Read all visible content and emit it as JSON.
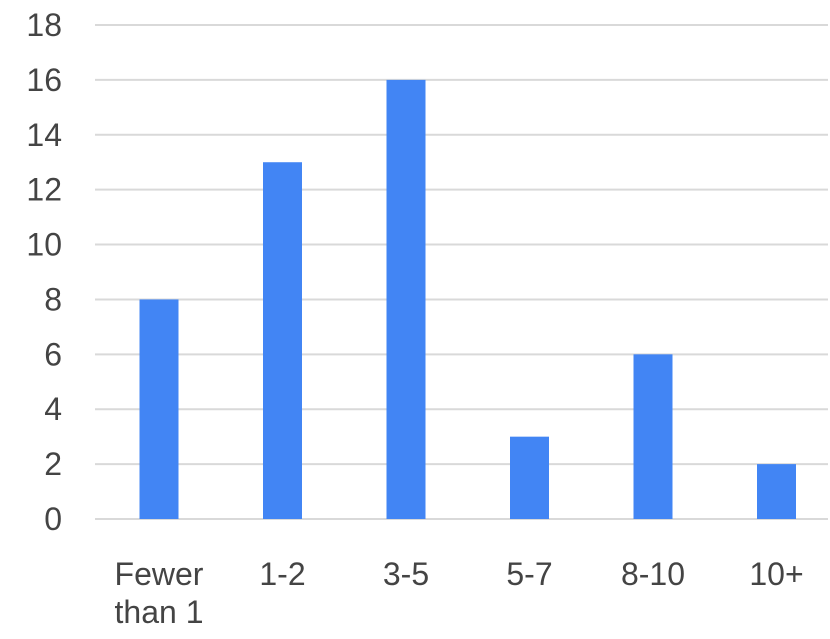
{
  "chart_data": {
    "type": "bar",
    "categories": [
      [
        "Fewer",
        "than 1"
      ],
      [
        "1-2"
      ],
      [
        "3-5"
      ],
      [
        "5-7"
      ],
      [
        "8-10"
      ],
      [
        "10+"
      ]
    ],
    "values": [
      8,
      13,
      16,
      3,
      6,
      2
    ],
    "title": "",
    "xlabel": "",
    "ylabel": "",
    "ylim": [
      0,
      18
    ],
    "yticks": [
      0,
      2,
      4,
      6,
      8,
      10,
      12,
      14,
      16,
      18
    ],
    "grid": true,
    "legend": "none",
    "colors": {
      "bar": "#4285f4",
      "grid": "#d9d9d9",
      "text": "#444444"
    }
  }
}
